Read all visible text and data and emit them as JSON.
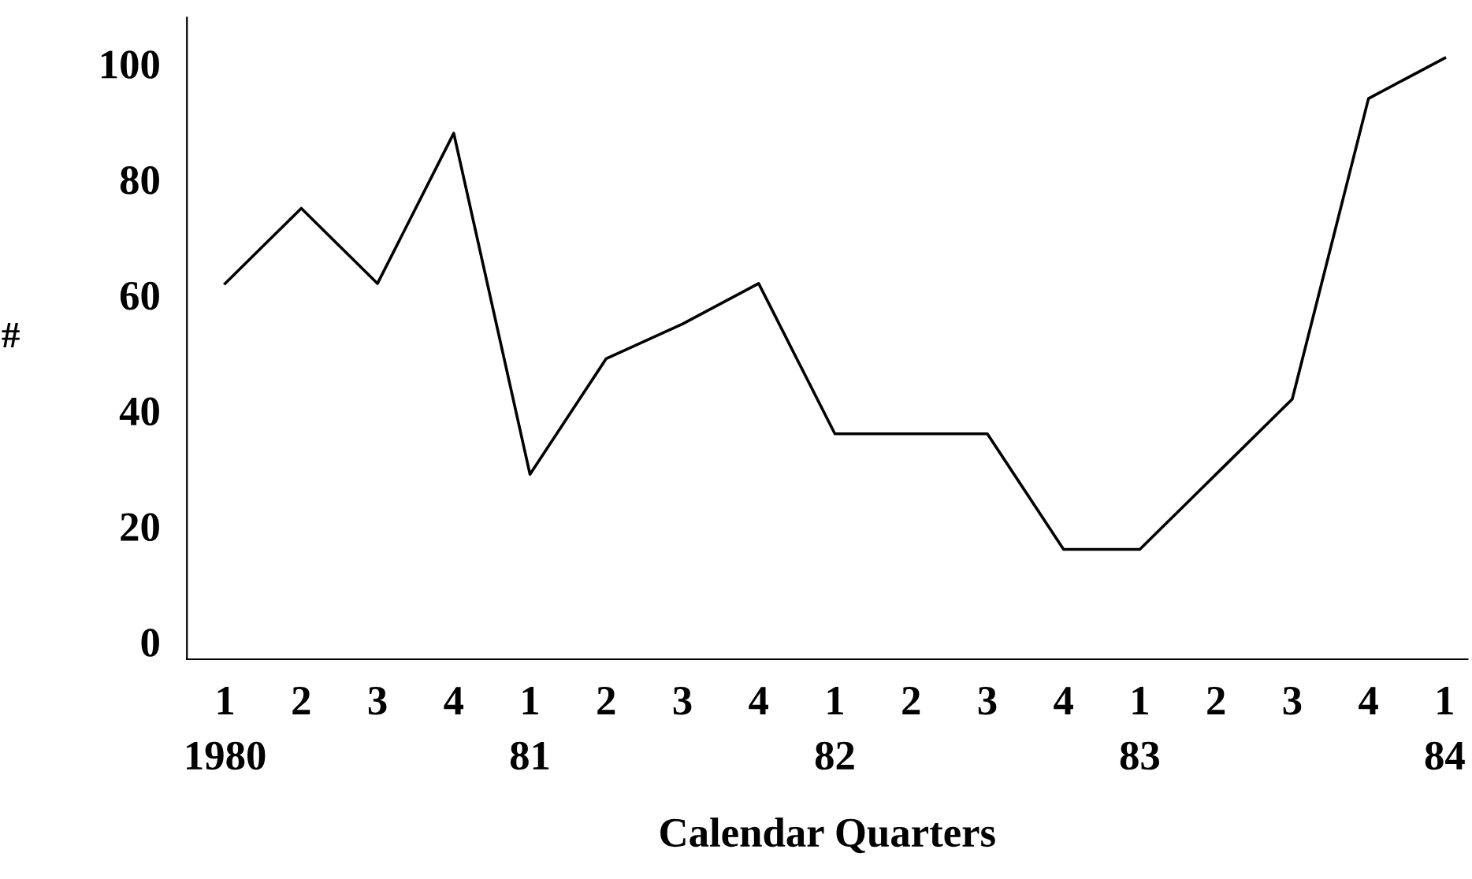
{
  "chart_data": {
    "type": "line",
    "xlabel": "Calendar Quarters",
    "ylabel": "#",
    "categories": [
      "1\n1980",
      "2",
      "3",
      "4",
      "1\n81",
      "2",
      "3",
      "4",
      "1\n82",
      "2",
      "3",
      "4",
      "1\n83",
      "2",
      "3",
      "4",
      "1\n84"
    ],
    "series": [
      {
        "color": "#000000",
        "values": [
          62,
          75,
          62,
          88,
          29,
          49,
          55,
          62,
          36,
          36,
          36,
          16,
          16,
          29,
          42,
          94,
          101
        ]
      }
    ],
    "ylim": [
      -3,
      108
    ],
    "yticks": [
      0,
      20,
      40,
      60,
      80,
      100
    ],
    "grid": false,
    "legend": false,
    "marker": "none",
    "line_style": "solid"
  }
}
